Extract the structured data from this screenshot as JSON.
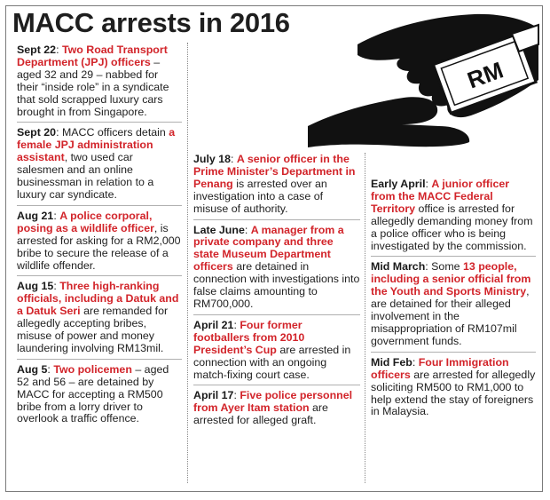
{
  "title": "MACC arrests in 2016",
  "illustration": {
    "note_label": "RM",
    "icon": "hand-passing-cash-icon"
  },
  "entries": [
    {
      "date": "Sept 22",
      "lead": ": ",
      "hl": "Two Road Transport Department (JPJ) officers",
      "rest": " – aged 32 and 29 – nabbed for their “inside role” in a syndicate that sold scrapped luxury cars brought in from Singapore."
    },
    {
      "date": "Sept 20",
      "lead": ": MACC officers detain ",
      "hl": "a female JPJ administration assistant",
      "rest": ", two used car salesmen and an online businessman in relation to a luxury car syndicate."
    },
    {
      "date": "Aug 21",
      "lead": ": ",
      "hl": "A police corporal, posing as a wildlife officer",
      "rest": ", is arrested for asking for a RM2,000 bribe to secure the release of a wildlife offender."
    },
    {
      "date": "Aug 15",
      "lead": ": ",
      "hl": "Three high-ranking officials, including a Datuk and a Datuk Seri",
      "rest": " are remanded for allegedly accepting bribes, misuse of power and money laundering involving RM13mil."
    },
    {
      "date": "Aug 5",
      "lead": ": ",
      "hl": "Two policemen",
      "rest": " – aged 52 and 56 – are detained by MACC for accepting a RM500 bribe from a lorry driver to overlook a traffic offence."
    },
    {
      "date": "July 18",
      "lead": ": ",
      "hl": "A senior officer in the Prime Minister’s Department in Penang",
      "rest": " is arrested over an investigation into a case of misuse of authority."
    },
    {
      "date": "Late June",
      "lead": ": ",
      "hl": "A manager from a private company and three state Museum Department officers",
      "rest": " are detained in connection with investigations into false claims amounting to RM700,000."
    },
    {
      "date": "April 21",
      "lead": ": ",
      "hl": "Four former footballers from 2010 President’s Cup",
      "rest": " are arrested in connection with an ongoing match-fixing court case."
    },
    {
      "date": "April 17",
      "lead": ": ",
      "hl": "Five police personnel from Ayer Itam station",
      "rest": " are arrested for alleged graft."
    },
    {
      "date": "Early April",
      "lead": ": ",
      "hl": "A junior officer from the MACC Federal Territory",
      "rest": " office is arrested for allegedly demanding money from a police officer who is being investigated by the commission."
    },
    {
      "date": "Mid March",
      "lead": ": Some ",
      "hl": "13 people, including a senior official from the Youth and Sports Ministry",
      "rest": ", are detained for their alleged involvement in the misappropriation of RM107mil government funds."
    },
    {
      "date": "Mid Feb",
      "lead": ": ",
      "hl": "Four Immigration officers",
      "rest": " are arrested for allegedly soliciting RM500 to RM1,000 to help extend the stay of foreigners in Malaysia."
    }
  ]
}
